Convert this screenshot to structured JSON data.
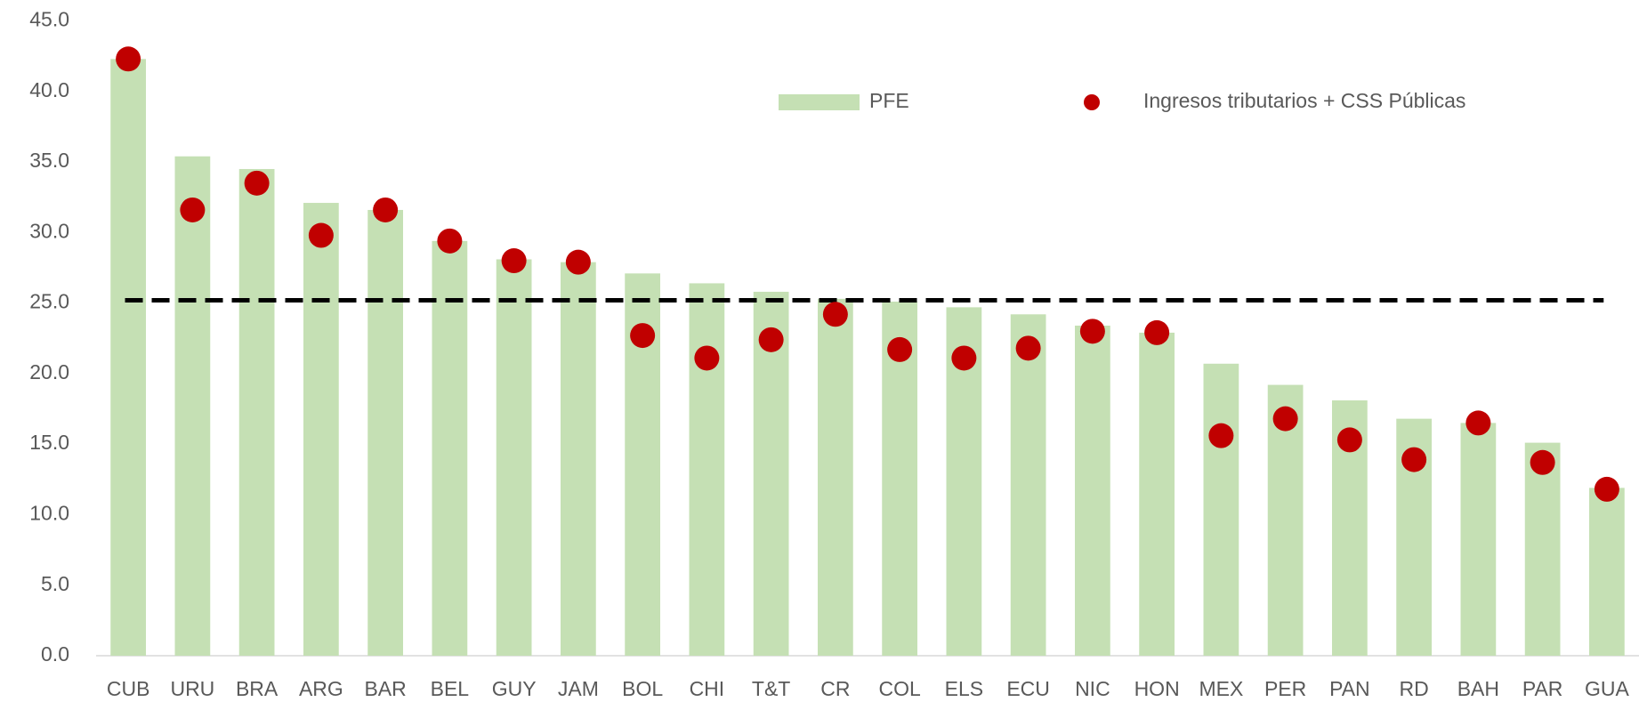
{
  "chart_data": {
    "type": "bar",
    "categories": [
      "CUB",
      "URU",
      "BRA",
      "ARG",
      "BAR",
      "BEL",
      "GUY",
      "JAM",
      "BOL",
      "CHI",
      "T&T",
      "CR",
      "COL",
      "ELS",
      "ECU",
      "NIC",
      "HON",
      "MEX",
      "PER",
      "PAN",
      "RD",
      "BAH",
      "PAR",
      "GUA"
    ],
    "series": [
      {
        "name": "PFE",
        "type": "bar",
        "color": "#c5e0b4",
        "values": [
          42.3,
          35.4,
          34.5,
          32.1,
          31.6,
          29.4,
          28.1,
          27.9,
          27.1,
          26.4,
          25.8,
          25.3,
          25.1,
          24.7,
          24.2,
          23.4,
          22.9,
          20.7,
          19.2,
          18.1,
          16.8,
          16.5,
          15.1,
          11.9
        ]
      },
      {
        "name": "Ingresos tributarios + CSS Públicas",
        "type": "scatter",
        "color": "#c00000",
        "values": [
          42.3,
          31.6,
          33.5,
          29.8,
          31.6,
          29.4,
          28.0,
          27.9,
          22.7,
          21.1,
          22.4,
          24.2,
          21.7,
          21.1,
          21.8,
          23.0,
          22.9,
          15.6,
          16.8,
          15.3,
          13.9,
          16.5,
          13.7,
          11.8
        ]
      }
    ],
    "hline": 25.2,
    "ylim": [
      0,
      45
    ],
    "yticks": [
      {
        "value": 0,
        "label": "0.0"
      },
      {
        "value": 5,
        "label": "5.0"
      },
      {
        "value": 10,
        "label": "10.0"
      },
      {
        "value": 15,
        "label": "15.0"
      },
      {
        "value": 20,
        "label": "20.0"
      },
      {
        "value": 25,
        "label": "25.0"
      },
      {
        "value": 30,
        "label": "30.0"
      },
      {
        "value": 35,
        "label": "35.0"
      },
      {
        "value": 40,
        "label": "40.0"
      },
      {
        "value": 45,
        "label": "45.0"
      }
    ],
    "grid": false
  }
}
